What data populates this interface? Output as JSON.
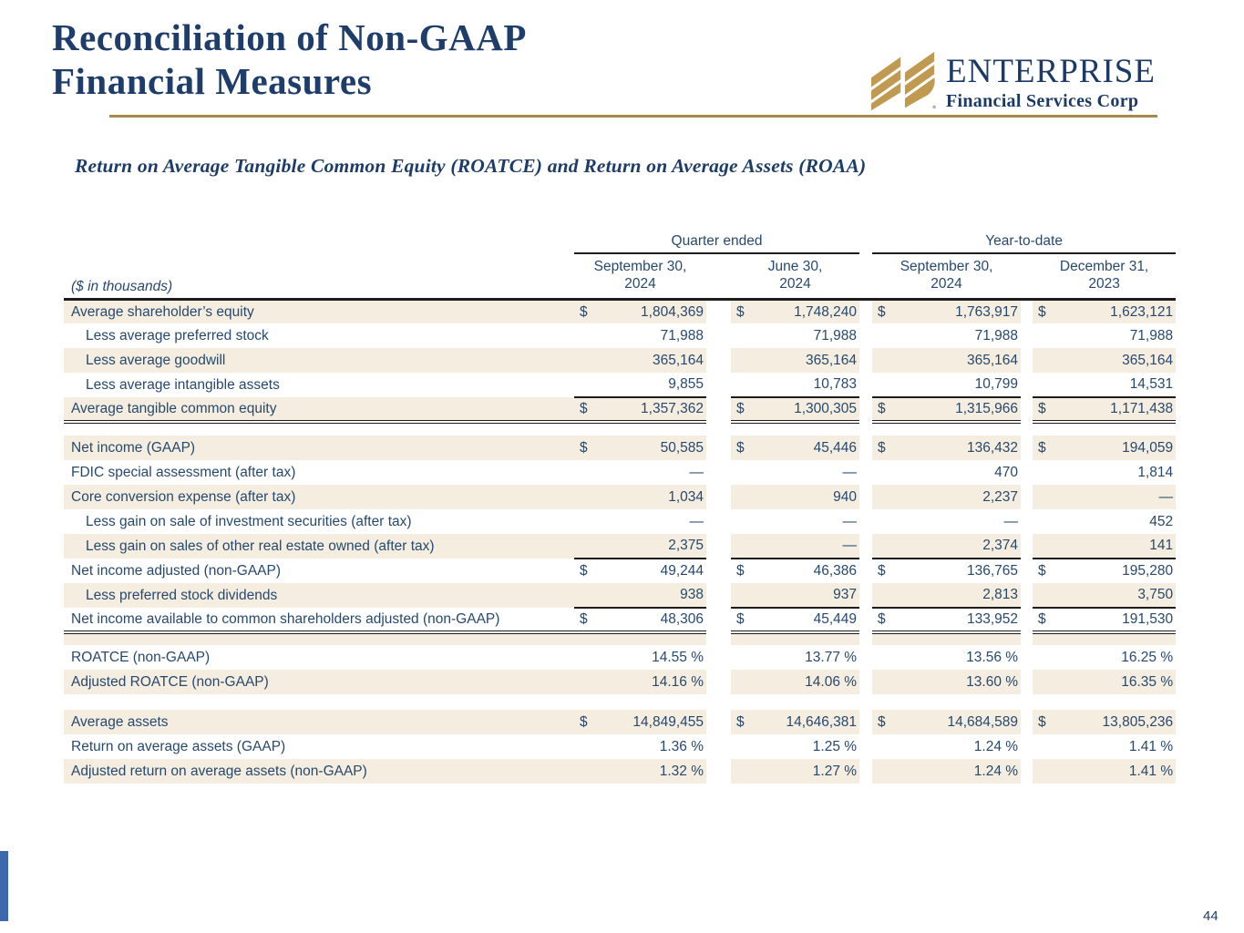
{
  "page": {
    "title_line1": "Reconciliation of Non-GAAP",
    "title_line2": "Financial Measures",
    "subtitle": "Return on Average Tangible Common Equity (ROATCE) and Return on Average Assets (ROAA)",
    "page_number": "44"
  },
  "logo": {
    "name": "ENTERPRISE",
    "tagline": "Financial Services Corp",
    "icon": "gold-diagonal-stripes-emblem"
  },
  "colors": {
    "navy_heading": "#1e3d6b",
    "table_text": "#27496e",
    "row_shade_beige": "#f5eee0",
    "gold_accent": "#a8894c",
    "rule_dark": "#1c1c1c",
    "accent_blue_bar": "#3e68ae"
  },
  "table": {
    "units_label": "($ in thousands)",
    "currency_symbol": "$",
    "col_groups": [
      {
        "label": "Quarter ended",
        "span": 2
      },
      {
        "label": "Year-to-date",
        "span": 2
      }
    ],
    "columns": [
      "September 30,\n2024",
      "June 30,\n2024",
      "September 30,\n2024",
      "December 31,\n2023"
    ],
    "rows": [
      {
        "label": "Average shareholder’s equity",
        "dollar": true,
        "shade": true,
        "values": [
          "1,804,369",
          "1,748,240",
          "1,763,917",
          "1,623,121"
        ]
      },
      {
        "label": "Less average preferred stock",
        "ind": true,
        "shade": false,
        "values": [
          "71,988",
          "71,988",
          "71,988",
          "71,988"
        ]
      },
      {
        "label": "Less average goodwill",
        "ind": true,
        "shade": true,
        "values": [
          "365,164",
          "365,164",
          "365,164",
          "365,164"
        ]
      },
      {
        "label": "Less average intangible assets",
        "ind": true,
        "shade": false,
        "values": [
          "9,855",
          "10,783",
          "10,799",
          "14,531"
        ]
      },
      {
        "label": "Average tangible common equity",
        "dollar": true,
        "shade": true,
        "rt": true,
        "rdb": true,
        "values": [
          "1,357,362",
          "1,300,305",
          "1,315,966",
          "1,171,438"
        ]
      },
      {
        "spacer": true,
        "h": 15,
        "shade": false
      },
      {
        "label": "Net income (GAAP)",
        "dollar": true,
        "shade": true,
        "values": [
          "50,585",
          "45,446",
          "136,432",
          "194,059"
        ]
      },
      {
        "label": "FDIC special assessment (after tax)",
        "shade": false,
        "values": [
          "—",
          "—",
          "470",
          "1,814"
        ]
      },
      {
        "label": "Core conversion expense (after tax)",
        "shade": true,
        "values": [
          "1,034",
          "940",
          "2,237",
          "—"
        ]
      },
      {
        "label": "Less gain on sale of investment securities (after tax)",
        "ind": true,
        "shade": false,
        "values": [
          "—",
          "—",
          "—",
          "452"
        ]
      },
      {
        "label": "Less gain on sales of other real estate owned (after tax)",
        "ind": true,
        "shade": true,
        "values": [
          "2,375",
          "—",
          "2,374",
          "141"
        ]
      },
      {
        "label": "Net income adjusted (non-GAAP)",
        "dollar": true,
        "shade": false,
        "rt": true,
        "values": [
          "49,244",
          "46,386",
          "136,765",
          "195,280"
        ]
      },
      {
        "label": "Less preferred stock dividends",
        "ind": true,
        "shade": true,
        "values": [
          "938",
          "937",
          "2,813",
          "3,750"
        ]
      },
      {
        "label": "Net income available to common shareholders adjusted (non-GAAP)",
        "dollar": true,
        "shade": false,
        "rt": true,
        "rdb": true,
        "values": [
          "48,306",
          "45,449",
          "133,952",
          "191,530"
        ]
      },
      {
        "spacer": true,
        "h": 14,
        "shade": true
      },
      {
        "label": "ROATCE (non-GAAP)",
        "shade": false,
        "values": [
          "14.55 %",
          "13.77 %",
          "13.56 %",
          "16.25 %"
        ]
      },
      {
        "label": "Adjusted ROATCE (non-GAAP)",
        "shade": true,
        "values": [
          "14.16 %",
          "14.06 %",
          "13.60 %",
          "16.35 %"
        ]
      },
      {
        "spacer": true,
        "h": 17,
        "shade": false
      },
      {
        "label": "Average assets",
        "dollar": true,
        "shade": true,
        "values": [
          "14,849,455",
          "14,646,381",
          "14,684,589",
          "13,805,236"
        ]
      },
      {
        "label": "Return on average assets (GAAP)",
        "shade": false,
        "values": [
          "1.36 %",
          "1.25 %",
          "1.24 %",
          "1.41 %"
        ]
      },
      {
        "label": "Adjusted return on average assets (non-GAAP)",
        "shade": true,
        "values": [
          "1.32 %",
          "1.27 %",
          "1.24 %",
          "1.41 %"
        ]
      }
    ]
  }
}
